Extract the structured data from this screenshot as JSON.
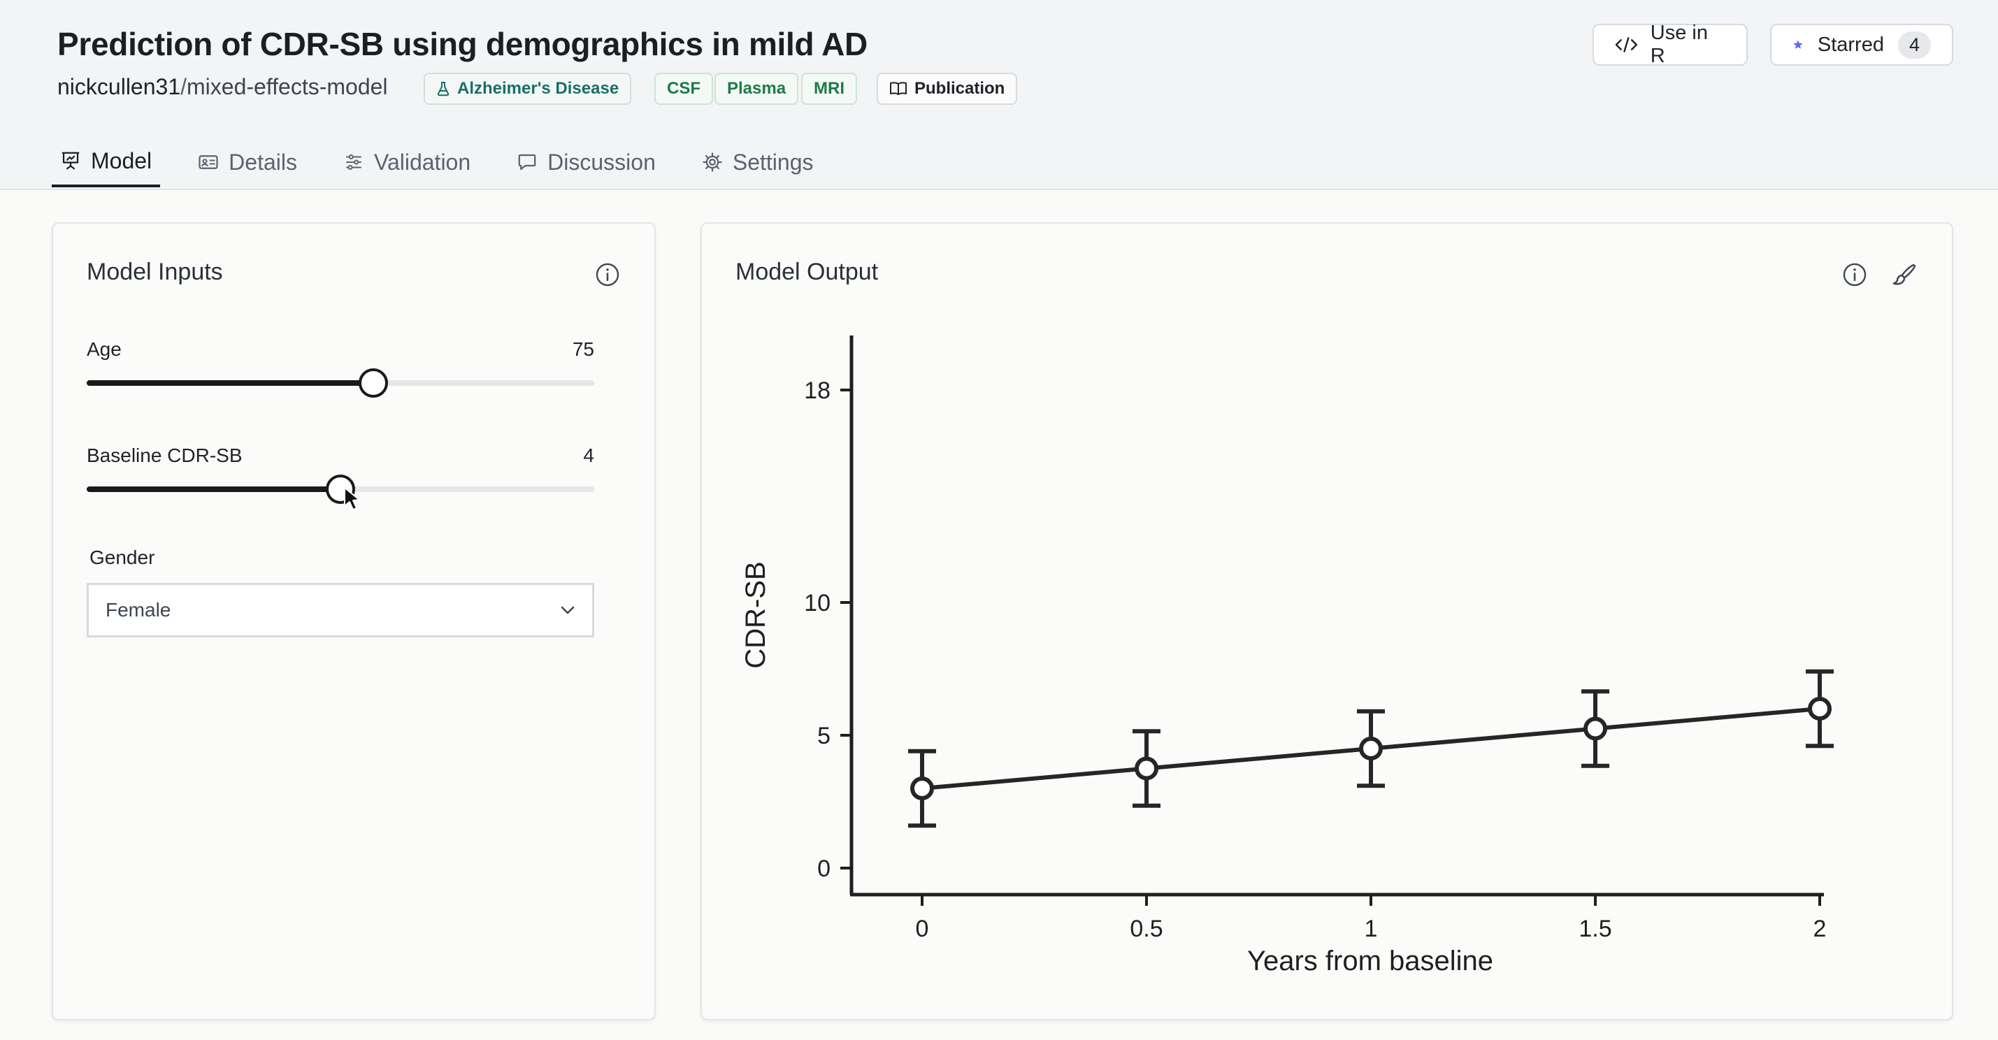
{
  "header": {
    "title": "Prediction of CDR-SB using demographics in mild AD",
    "owner": "nickcullen31",
    "separator": "/",
    "repo": "mixed-effects-model",
    "tags": [
      {
        "label": "Alzheimer's Disease",
        "icon": "flask-icon"
      },
      {
        "label": "CSF"
      },
      {
        "label": "Plasma"
      },
      {
        "label": "MRI"
      },
      {
        "label": "Publication",
        "icon": "book-icon"
      }
    ],
    "use_in_r": {
      "label": "Use in R",
      "icon": "code-icon"
    },
    "starred": {
      "label": "Starred",
      "count": "4",
      "icon": "star-icon",
      "color": "#5b6fe6"
    }
  },
  "tabs": [
    {
      "label": "Model",
      "icon": "presentation-chart-icon",
      "active": true
    },
    {
      "label": "Details",
      "icon": "id-card-icon"
    },
    {
      "label": "Validation",
      "icon": "sliders-icon"
    },
    {
      "label": "Discussion",
      "icon": "chat-bubble-icon"
    },
    {
      "label": "Settings",
      "icon": "gear-icon"
    }
  ],
  "inputs": {
    "title": "Model Inputs",
    "age": {
      "label": "Age",
      "value": "75",
      "fraction": 0.565
    },
    "baseline": {
      "label": "Baseline CDR-SB",
      "value": "4",
      "fraction": 0.5
    },
    "gender": {
      "label": "Gender",
      "value": "Female"
    }
  },
  "output": {
    "title": "Model Output"
  },
  "chart_data": {
    "type": "line",
    "x": [
      0,
      0.5,
      1,
      1.5,
      2
    ],
    "y": [
      3.0,
      3.75,
      4.5,
      5.25,
      6.0
    ],
    "error_low": [
      1.6,
      2.35,
      3.1,
      3.85,
      4.6
    ],
    "error_high": [
      4.4,
      5.15,
      5.9,
      6.65,
      7.4
    ],
    "xlabel": "Years from baseline",
    "ylabel": "CDR-SB",
    "x_ticks": [
      "0",
      "0.5",
      "1",
      "1.5",
      "2"
    ],
    "y_ticks": [
      "0",
      "5",
      "10",
      "18"
    ],
    "grid": false,
    "legend": "none"
  }
}
